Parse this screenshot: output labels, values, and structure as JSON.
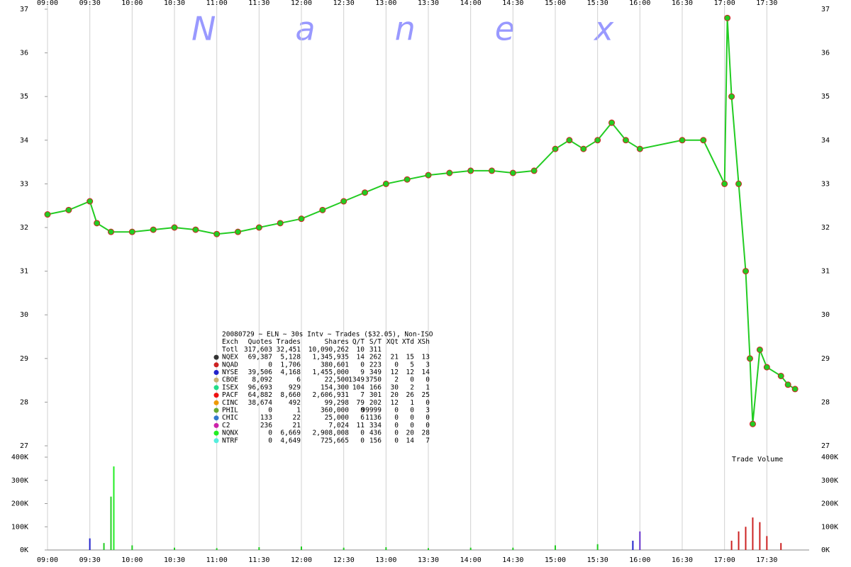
{
  "chart_data": [
    {
      "type": "line",
      "title": "Nanex",
      "color": "#22cc22",
      "marker_edge": "#cc2222",
      "x": [
        "09:00",
        "09:15",
        "09:30",
        "09:35",
        "09:45",
        "10:00",
        "10:15",
        "10:30",
        "10:45",
        "11:00",
        "11:15",
        "11:30",
        "11:45",
        "12:00",
        "12:15",
        "12:30",
        "12:45",
        "13:00",
        "13:15",
        "13:30",
        "13:45",
        "14:00",
        "14:15",
        "14:30",
        "14:45",
        "15:00",
        "15:10",
        "15:20",
        "15:30",
        "15:40",
        "15:50",
        "16:00",
        "16:30",
        "16:45",
        "17:00",
        "17:02",
        "17:05",
        "17:10",
        "17:15",
        "17:18",
        "17:20",
        "17:25",
        "17:30",
        "17:40",
        "17:45",
        "17:50"
      ],
      "values": [
        32.3,
        32.4,
        32.6,
        32.1,
        31.9,
        31.9,
        31.95,
        32.0,
        31.95,
        31.85,
        31.9,
        32.0,
        32.1,
        32.2,
        32.4,
        32.6,
        32.8,
        33.0,
        33.1,
        33.2,
        33.25,
        33.3,
        33.3,
        33.25,
        33.3,
        33.8,
        34.0,
        33.8,
        34.0,
        34.4,
        34.0,
        33.8,
        34.0,
        34.0,
        33.0,
        36.8,
        35.0,
        33.0,
        31.0,
        29.0,
        27.5,
        29.2,
        28.8,
        28.6,
        28.4,
        28.3
      ],
      "xlim": [
        "09:00",
        "18:00"
      ],
      "xticks": [
        "09:00",
        "09:30",
        "10:00",
        "10:30",
        "11:00",
        "11:30",
        "12:00",
        "12:30",
        "13:00",
        "13:30",
        "14:00",
        "14:30",
        "15:00",
        "15:30",
        "16:00",
        "16:30",
        "17:00",
        "17:30"
      ],
      "ylim": [
        27,
        37
      ],
      "yticks": [
        27,
        28,
        29,
        30,
        31,
        32,
        33,
        34,
        35,
        36,
        37
      ],
      "grid": true,
      "legend_table": {
        "caption": "20080729 ~ ELN ~ 30s Intv ~ Trades ($32.05), Non-ISO",
        "columns": [
          "Exch",
          "Quotes",
          "Trades",
          "Shares",
          "Q/T",
          "S/T",
          "XQt",
          "XTd",
          "XSh"
        ],
        "rows": [
          {
            "color": null,
            "cells": [
              "Totl",
              "317,603",
              "32,451",
              "10,090,262",
              "10",
              "311"
            ]
          },
          {
            "color": "#333333",
            "cells": [
              "NQEX",
              "69,387",
              "5,128",
              "1,345,935",
              "14",
              "262",
              "21",
              "15",
              "13"
            ]
          },
          {
            "color": "#cc2222",
            "cells": [
              "NQAD",
              "0",
              "1,706",
              "380,601",
              "0",
              "223",
              "0",
              "5",
              "3"
            ]
          },
          {
            "color": "#2222cc",
            "cells": [
              "NYSE",
              "39,506",
              "4,168",
              "1,455,000",
              "9",
              "349",
              "12",
              "12",
              "14"
            ]
          },
          {
            "color": "#c8b070",
            "cells": [
              "CBOE",
              "8,092",
              "6",
              "22,500",
              "1349",
              "3750",
              "2",
              "0",
              "0"
            ]
          },
          {
            "color": "#22dd88",
            "cells": [
              "ISEX",
              "96,693",
              "929",
              "154,300",
              "104",
              "166",
              "30",
              "2",
              "1"
            ]
          },
          {
            "color": "#ee1111",
            "cells": [
              "PACF",
              "64,882",
              "8,660",
              "2,606,931",
              "7",
              "301",
              "20",
              "26",
              "25"
            ]
          },
          {
            "color": "#ee9900",
            "cells": [
              "CINC",
              "38,674",
              "492",
              "99,298",
              "79",
              "202",
              "12",
              "1",
              "0"
            ]
          },
          {
            "color": "#66aa33",
            "cells": [
              "PHIL",
              "0",
              "1",
              "360,000",
              "0",
              "99999",
              "0",
              "0",
              "3"
            ]
          },
          {
            "color": "#3377cc",
            "cells": [
              "CHIC",
              "133",
              "22",
              "25,000",
              "6",
              "1136",
              "0",
              "0",
              "0"
            ]
          },
          {
            "color": "#cc22aa",
            "cells": [
              "C2",
              "236",
              "21",
              "7,024",
              "11",
              "334",
              "0",
              "0",
              "0"
            ]
          },
          {
            "color": "#22ee22",
            "cells": [
              "NQNX",
              "0",
              "6,669",
              "2,908,008",
              "0",
              "436",
              "0",
              "20",
              "28"
            ]
          },
          {
            "color": "#55eedd",
            "cells": [
              "NTRF",
              "0",
              "4,649",
              "725,665",
              "0",
              "156",
              "0",
              "14",
              "7"
            ]
          }
        ]
      }
    },
    {
      "type": "bar",
      "annotation": "Trade Volume",
      "x": [
        "09:30",
        "09:40",
        "09:45",
        "09:47",
        "10:00",
        "10:30",
        "11:00",
        "11:30",
        "12:00",
        "12:30",
        "13:00",
        "13:30",
        "14:00",
        "14:30",
        "15:00",
        "15:30",
        "15:55",
        "16:00",
        "17:05",
        "17:10",
        "17:15",
        "17:20",
        "17:25",
        "17:30",
        "17:40"
      ],
      "values": [
        50000,
        30000,
        230000,
        360000,
        20000,
        10000,
        8000,
        12000,
        15000,
        10000,
        12000,
        8000,
        10000,
        10000,
        20000,
        25000,
        40000,
        80000,
        40000,
        80000,
        100000,
        140000,
        120000,
        60000,
        30000
      ],
      "colors": [
        "#2222cc",
        "#22cc22",
        "#22cc22",
        "#22ee22",
        "#22cc22",
        "#22cc22",
        "#22cc22",
        "#22cc22",
        "#22cc22",
        "#22cc22",
        "#22cc22",
        "#22cc22",
        "#22cc22",
        "#22cc22",
        "#22cc22",
        "#22cc22",
        "#2222cc",
        "#6633cc",
        "#cc2222",
        "#cc2222",
        "#cc2222",
        "#cc2222",
        "#cc2222",
        "#cc2222",
        "#cc2222"
      ],
      "ylim": [
        0,
        400000
      ],
      "yticks": [
        {
          "value": 0,
          "label": "0K"
        },
        {
          "value": 100000,
          "label": "100K"
        },
        {
          "value": 200000,
          "label": "200K"
        },
        {
          "value": 300000,
          "label": "300K"
        },
        {
          "value": 400000,
          "label": "400K"
        }
      ]
    }
  ]
}
